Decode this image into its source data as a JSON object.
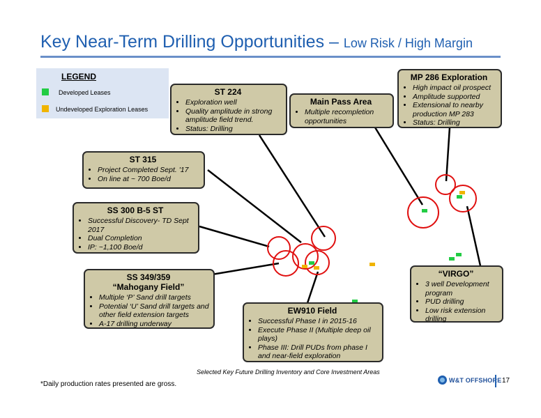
{
  "title": {
    "main": "Key Near-Term Drilling Opportunities – ",
    "sub": "Low Risk / High Margin"
  },
  "colors": {
    "title": "#1f5fb0",
    "box_fill": "#cfc9a7",
    "developed": "#22cc44",
    "undeveloped": "#f0b400",
    "circle": "#e01010"
  },
  "legend": {
    "title": "LEGEND",
    "items": [
      {
        "label": "Developed Leases",
        "color": "#22cc44"
      },
      {
        "label": "Undeveloped  Exploration Leases",
        "color": "#f0b400"
      }
    ]
  },
  "callouts": {
    "st224": {
      "title": "ST 224",
      "bullets": [
        "Exploration well",
        "Quality amplitude in strong amplitude field trend.",
        "Status:  Drilling"
      ]
    },
    "main_pass": {
      "title": "Main Pass Area",
      "bullets": [
        "Multiple recompletion opportunities"
      ]
    },
    "mp286": {
      "title": "MP 286 Exploration",
      "bullets": [
        "High impact oil prospect",
        "Amplitude supported",
        "Extensional to nearby production MP 283",
        "Status:  Drilling"
      ]
    },
    "st315": {
      "title": "ST 315",
      "bullets": [
        "Project Completed  Sept. '17",
        "On line at ~ 700 Boe/d"
      ]
    },
    "ss300": {
      "title": "SS 300 B-5 ST",
      "bullets": [
        "Successful Discovery- TD Sept 2017",
        "Dual Completion",
        "IP: ~1,100 Boe/d"
      ]
    },
    "ss349": {
      "title": "SS 349/359",
      "subtitle": "“Mahogany Field”",
      "bullets": [
        "Multiple  ‘P’ Sand drill targets",
        "Potential  ‘U’ Sand drill targets and other field extension targets",
        "A-17 drilling underway"
      ]
    },
    "ew910": {
      "title": "EW910 Field",
      "bullets": [
        "Successful Phase I in 2015-16",
        "Execute Phase II (Multiple deep oil plays)",
        "Phase III:  Drill PUDs from phase I and near-field exploration"
      ]
    },
    "virgo": {
      "title": "“VIRGO”",
      "bullets": [
        "3 well Development program",
        "PUD drilling",
        "Low risk extension drilling"
      ]
    }
  },
  "caption": "Selected Key Future Drilling Inventory and Core Investment Areas",
  "footnote": "*Daily production rates presented are gross.",
  "logo_text": "W&T OFFSHORE",
  "page_number": "17"
}
